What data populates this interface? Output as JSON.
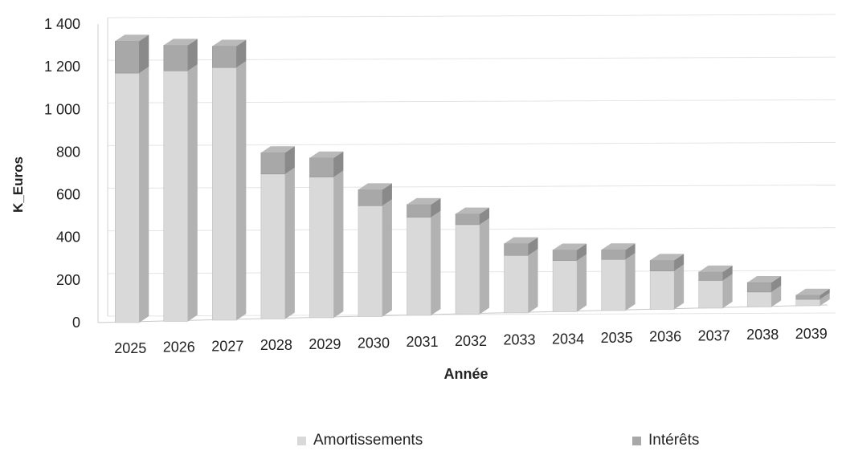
{
  "chart_data": {
    "type": "bar",
    "stacked": true,
    "style": "3d-column",
    "xlabel": "Année",
    "ylabel": "K_Euros",
    "ylim": [
      0,
      1400
    ],
    "yticks": [
      0,
      200,
      400,
      600,
      800,
      1000,
      1200,
      1400
    ],
    "ytick_labels": [
      "0",
      "200",
      "400",
      "600",
      "800",
      "1 000",
      "1 200",
      "1 400"
    ],
    "categories": [
      "2025",
      "2026",
      "2027",
      "2028",
      "2029",
      "2030",
      "2031",
      "2032",
      "2033",
      "2034",
      "2035",
      "2036",
      "2037",
      "2038",
      "2039"
    ],
    "series": [
      {
        "name": "Amortissements",
        "color": "#d9d9d9",
        "values": [
          1170,
          1175,
          1185,
          680,
          660,
          520,
          460,
          420,
          270,
          240,
          240,
          180,
          130,
          70,
          30
        ]
      },
      {
        "name": "Intérêts",
        "color": "#a8a8a8",
        "values": [
          150,
          120,
          100,
          100,
          90,
          75,
          60,
          50,
          55,
          50,
          45,
          50,
          40,
          45,
          20
        ]
      }
    ],
    "grid": true,
    "legend_position": "bottom"
  }
}
